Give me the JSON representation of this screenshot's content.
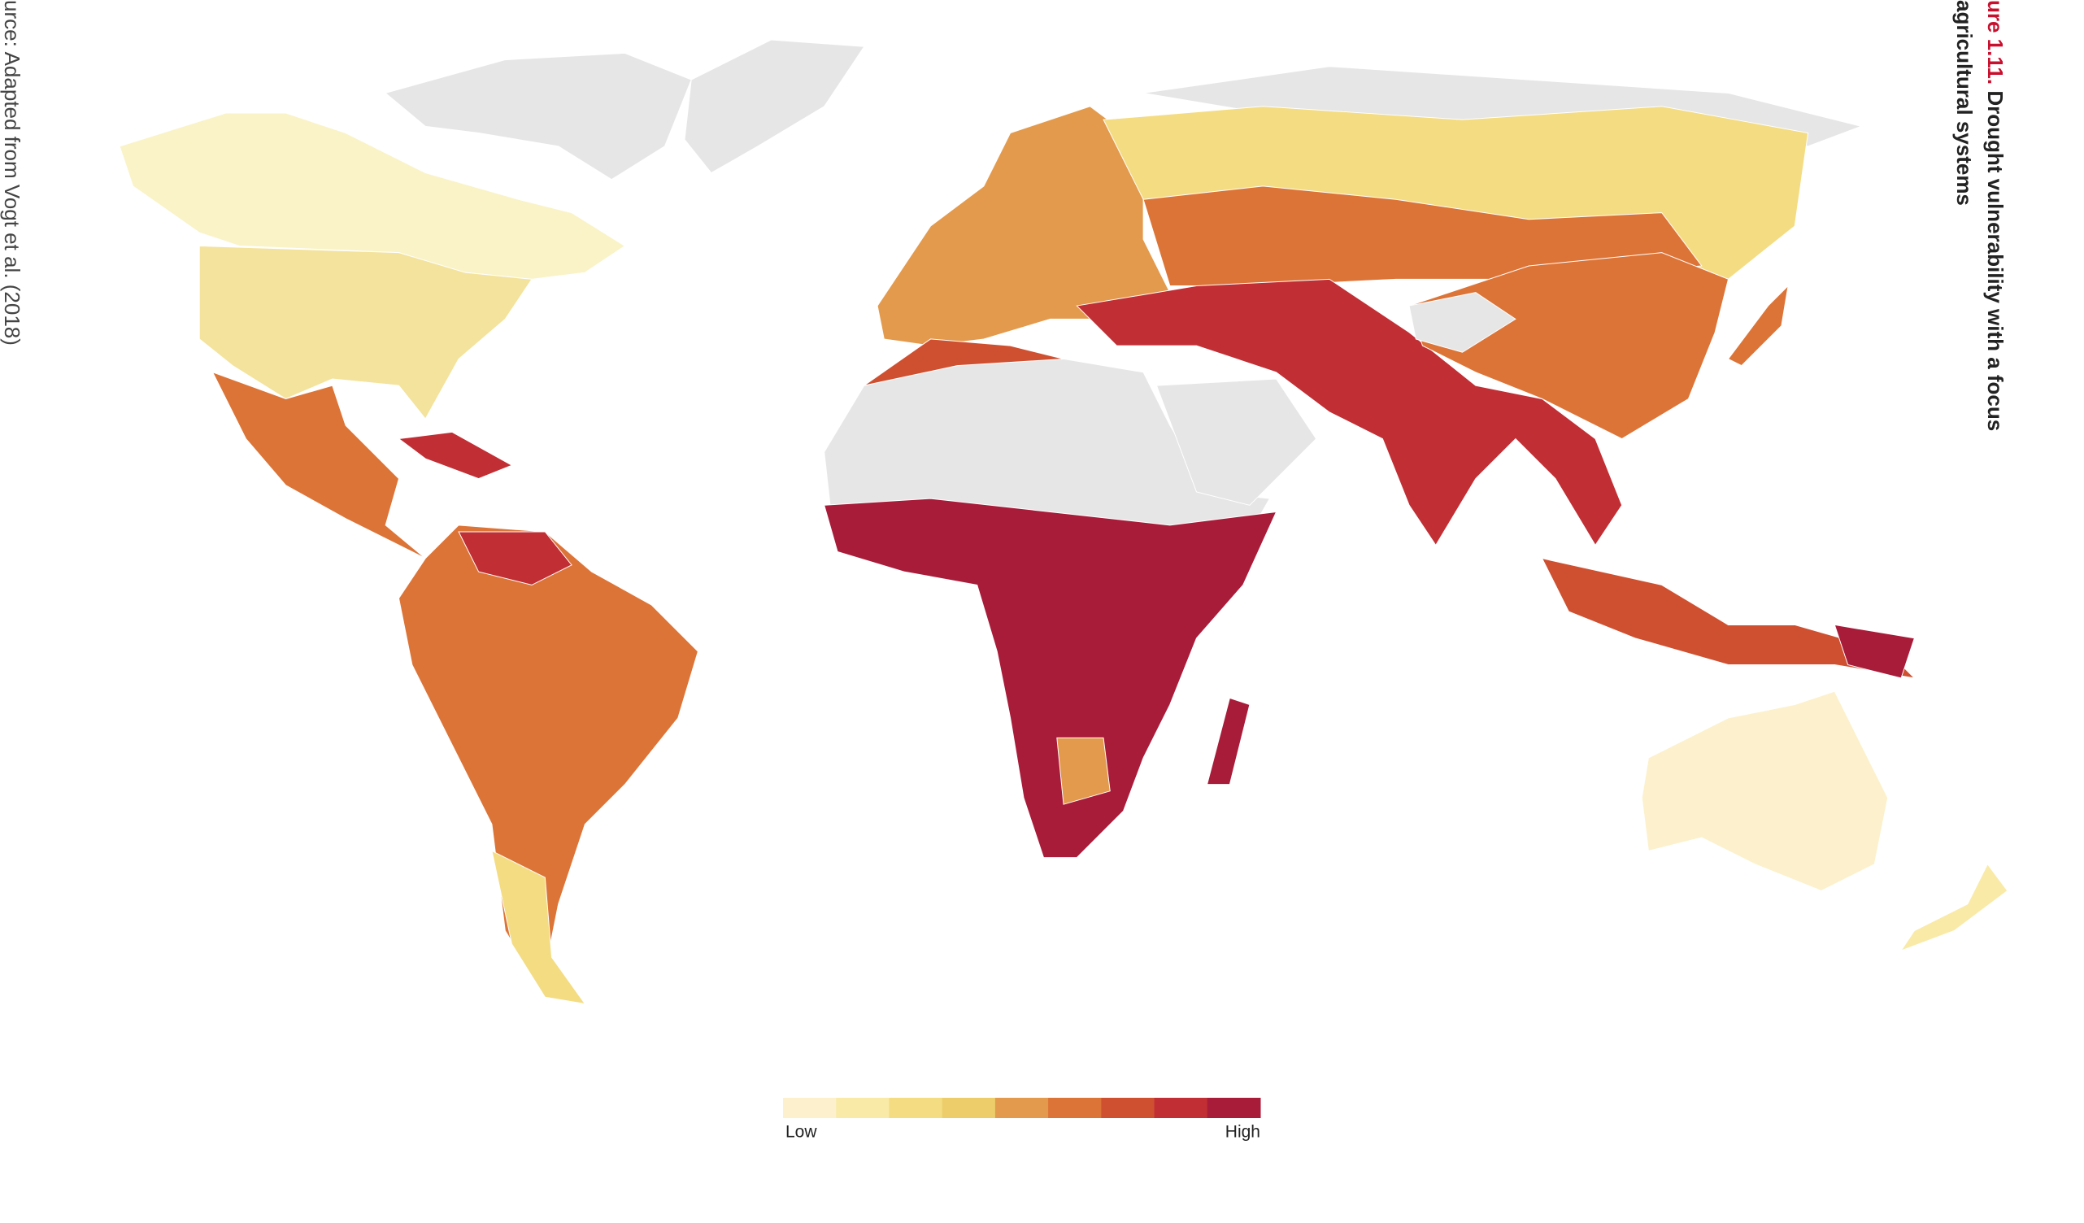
{
  "figure": {
    "label": "ure 1.11.",
    "title_line1": "Drought vulnerability with a focus",
    "title_line2": "agricultural systems",
    "source": "urce: Adapted from Vogt et al. (2018)"
  },
  "legend": {
    "low": "Low",
    "high": "High",
    "colors": [
      "#fcf1cc",
      "#f9eaa8",
      "#f4dc82",
      "#eccd6a",
      "#e39a4c",
      "#dd7437",
      "#cf5030",
      "#c12e34",
      "#a81c3a"
    ]
  }
}
